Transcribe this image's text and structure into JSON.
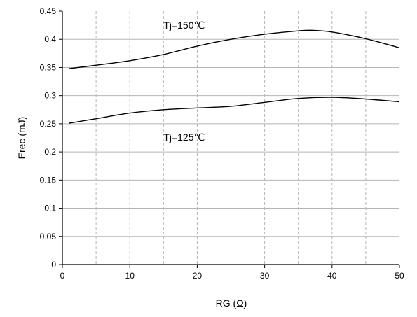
{
  "chart_data": {
    "type": "line",
    "title": "",
    "xlabel": "RG (Ω)",
    "ylabel": "Erec  (mJ)",
    "xlim": [
      0,
      50
    ],
    "ylim": [
      0,
      0.45
    ],
    "xticks": [
      0,
      10,
      20,
      30,
      40,
      50
    ],
    "xtick_labels": [
      "0",
      "10",
      "20",
      "30",
      "40",
      "50"
    ],
    "yticks": [
      0,
      0.05,
      0.1,
      0.15,
      0.2,
      0.25,
      0.3,
      0.35,
      0.4,
      0.45
    ],
    "ytick_labels": [
      "0",
      "0.05",
      "0.1",
      "0.15",
      "0.2",
      "0.25",
      "0.3",
      "0.35",
      "0.4",
      "0.45"
    ],
    "x_grid": [
      5,
      10,
      15,
      20,
      25,
      30,
      35,
      40,
      45
    ],
    "y_grid": [
      0.05,
      0.1,
      0.15,
      0.2,
      0.25,
      0.3,
      0.35,
      0.4
    ],
    "grid": true,
    "line_color": "#000000",
    "grid_color": "#b5b5b5",
    "series": [
      {
        "x": [
          1,
          5,
          10,
          15,
          20,
          25,
          30,
          35,
          37,
          40,
          45,
          50
        ],
        "values": [
          0.348,
          0.354,
          0.362,
          0.373,
          0.388,
          0.4,
          0.409,
          0.415,
          0.416,
          0.413,
          0.401,
          0.385
        ]
      },
      {
        "x": [
          1,
          5,
          10,
          15,
          20,
          25,
          30,
          35,
          40,
          45,
          50
        ],
        "values": [
          0.251,
          0.259,
          0.269,
          0.275,
          0.278,
          0.281,
          0.288,
          0.295,
          0.297,
          0.294,
          0.289
        ]
      }
    ],
    "annotations": [
      {
        "text": "Tj=150℃",
        "x": 15,
        "y": 0.419
      },
      {
        "text": "Tj=125℃",
        "x": 15,
        "y": 0.22
      }
    ]
  }
}
